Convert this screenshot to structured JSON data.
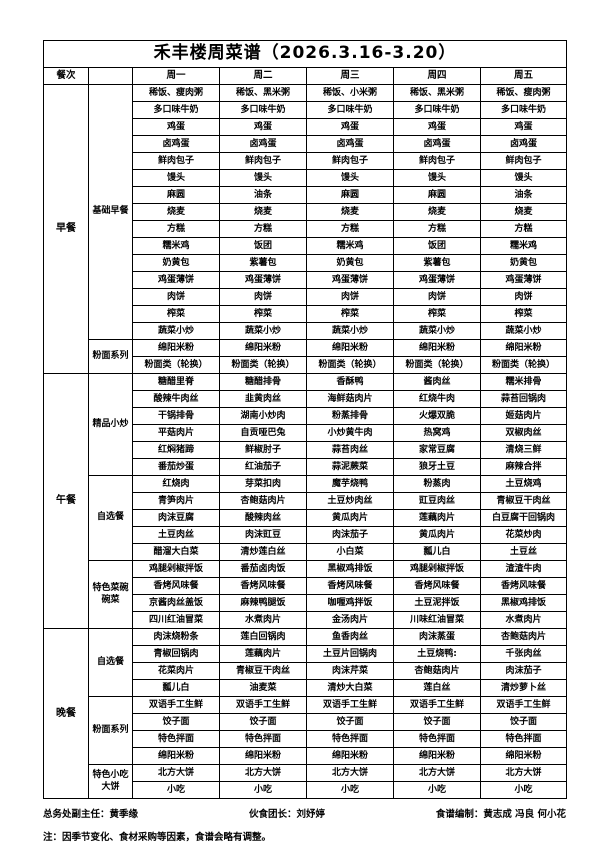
{
  "title": "禾丰楼周菜谱（2026.3.16-3.20）",
  "header": {
    "meal_col": "餐次",
    "group_col": "",
    "days": [
      "周一",
      "周二",
      "周三",
      "周四",
      "周五"
    ]
  },
  "meals": [
    {
      "name": "早餐",
      "groups": [
        {
          "name": "基础早餐",
          "rows": [
            [
              "稀饭、瘦肉粥",
              "稀饭、黑米粥",
              "稀饭、小米粥",
              "稀饭、黑米粥",
              "稀饭、瘦肉粥"
            ],
            [
              "多口味牛奶",
              "多口味牛奶",
              "多口味牛奶",
              "多口味牛奶",
              "多口味牛奶"
            ],
            [
              "鸡蛋",
              "鸡蛋",
              "鸡蛋",
              "鸡蛋",
              "鸡蛋"
            ],
            [
              "卤鸡蛋",
              "卤鸡蛋",
              "卤鸡蛋",
              "卤鸡蛋",
              "卤鸡蛋"
            ],
            [
              "鲜肉包子",
              "鲜肉包子",
              "鲜肉包子",
              "鲜肉包子",
              "鲜肉包子"
            ],
            [
              "馒头",
              "馒头",
              "馒头",
              "馒头",
              "馒头"
            ],
            [
              "麻圆",
              "油条",
              "麻圆",
              "麻圆",
              "油条"
            ],
            [
              "烧麦",
              "烧麦",
              "烧麦",
              "烧麦",
              "烧麦"
            ],
            [
              "方糕",
              "方糕",
              "方糕",
              "方糕",
              "方糕"
            ],
            [
              "糯米鸡",
              "饭团",
              "糯米鸡",
              "饭团",
              "糯米鸡"
            ],
            [
              "奶黄包",
              "紫薯包",
              "奶黄包",
              "紫薯包",
              "奶黄包"
            ],
            [
              "鸡蛋薄饼",
              "鸡蛋薄饼",
              "鸡蛋薄饼",
              "鸡蛋薄饼",
              "鸡蛋薄饼"
            ],
            [
              "肉饼",
              "肉饼",
              "肉饼",
              "肉饼",
              "肉饼"
            ],
            [
              "榨菜",
              "榨菜",
              "榨菜",
              "榨菜",
              "榨菜"
            ],
            [
              "蔬菜小炒",
              "蔬菜小炒",
              "蔬菜小炒",
              "蔬菜小炒",
              "蔬菜小炒"
            ]
          ]
        },
        {
          "name": "粉面系列",
          "rows": [
            [
              "绵阳米粉",
              "绵阳米粉",
              "绵阳米粉",
              "绵阳米粉",
              "绵阳米粉"
            ],
            [
              "粉面类（轮换）",
              "粉面类（轮换）",
              "粉面类（轮换）",
              "粉面类（轮换）",
              "粉面类（轮换）"
            ]
          ]
        }
      ]
    },
    {
      "name": "午餐",
      "groups": [
        {
          "name": "精品小炒",
          "rows": [
            [
              "糖醋里脊",
              "糖醋排骨",
              "香酥鸭",
              "酱肉丝",
              "糯米排骨"
            ],
            [
              "酸辣牛肉丝",
              "韭黄肉丝",
              "海鲜菇肉片",
              "红烧牛肉",
              "蒜苔回锅肉"
            ],
            [
              "干锅排骨",
              "湖南小炒肉",
              "粉蒸排骨",
              "火爆双脆",
              "姬菇肉片"
            ],
            [
              "平菇肉片",
              "自贡哑巴兔",
              "小炒黄牛肉",
              "热窝鸡",
              "双椒肉丝"
            ],
            [
              "红焖猪蹄",
              "鲜椒肘子",
              "蒜苔肉丝",
              "家常豆腐",
              "清烧三鲜"
            ],
            [
              "番茄炒蛋",
              "红油茄子",
              "蒜泥蕨菜",
              "狼牙土豆",
              "麻辣合拌"
            ]
          ]
        },
        {
          "name": "自选餐",
          "rows": [
            [
              "红烧肉",
              "芽菜扣肉",
              "魔芋烧鸭",
              "粉蒸肉",
              "土豆烧鸡"
            ],
            [
              "青笋肉片",
              "杏鲍菇肉片",
              "土豆炒肉丝",
              "豇豆肉丝",
              "青椒豆干肉丝"
            ],
            [
              "肉沫豆腐",
              "酸辣肉丝",
              "黄瓜肉片",
              "莲藕肉片",
              "白豆腐干回锅肉"
            ],
            [
              "土豆肉丝",
              "肉沫豇豆",
              "肉沫茄子",
              "黄瓜肉片",
              "花菜炒肉"
            ],
            [
              "醋溜大白菜",
              "清炒莲白丝",
              "小白菜",
              "瓢儿白",
              "土豆丝"
            ]
          ]
        },
        {
          "name": "特色菜碗碗菜",
          "rows": [
            [
              "鸡腿剁椒拌饭",
              "番茄卤肉饭",
              "黑椒鸡排饭",
              "鸡腿剁椒拌饭",
              "渣渣牛肉"
            ],
            [
              "香烤风味餐",
              "香烤风味餐",
              "香烤风味餐",
              "香烤风味餐",
              "香烤风味餐"
            ],
            [
              "京酱肉丝盖饭",
              "麻辣鸭腿饭",
              "咖喱鸡拌饭",
              "土豆泥拌饭",
              "黑椒鸡排饭"
            ],
            [
              "四川红油冒菜",
              "水煮肉片",
              "金汤肉片",
              "川味红油冒菜",
              "水煮肉片"
            ]
          ]
        }
      ]
    },
    {
      "name": "晚餐",
      "groups": [
        {
          "name": "自选餐",
          "rows": [
            [
              "肉沫烧粉条",
              "莲白回锅肉",
              "鱼香肉丝",
              "肉沫蒸蛋",
              "杏鲍菇肉片"
            ],
            [
              "青椒回锅肉",
              "莲藕肉片",
              "土豆片回锅肉",
              "土豆烧鸭:",
              "千张肉丝"
            ],
            [
              "花菜肉片",
              "青椒豆干肉丝",
              "肉沫芹菜",
              "杏鲍菇肉片",
              "肉沫茄子"
            ],
            [
              "瓢儿白",
              "油麦菜",
              "清炒大白菜",
              "莲白丝",
              "清炒萝卜丝"
            ]
          ]
        },
        {
          "name": "粉面系列",
          "rows": [
            [
              "双语手工生鲜",
              "双语手工生鲜",
              "双语手工生鲜",
              "双语手工生鲜",
              "双语手工生鲜"
            ],
            [
              "饺子面",
              "饺子面",
              "饺子面",
              "饺子面",
              "饺子面"
            ],
            [
              "特色拌面",
              "特色拌面",
              "特色拌面",
              "特色拌面",
              "特色拌面"
            ],
            [
              "绵阳米粉",
              "绵阳米粉",
              "绵阳米粉",
              "绵阳米粉",
              "绵阳米粉"
            ]
          ]
        },
        {
          "name": "特色小吃大饼",
          "rows": [
            [
              "北方大饼",
              "北方大饼",
              "北方大饼",
              "北方大饼",
              "北方大饼"
            ],
            [
              "小吃",
              "小吃",
              "小吃",
              "小吃",
              "小吃"
            ]
          ]
        }
      ]
    }
  ],
  "footer": {
    "admin": "总务处副主任：黄季缘",
    "canteen_leader": "伙食团长：刘妤婷",
    "compilers": "食谱编制：黄志成  冯良  何小花"
  },
  "note": "注：因季节变化、食材采购等因素，食谱会略有调整。"
}
